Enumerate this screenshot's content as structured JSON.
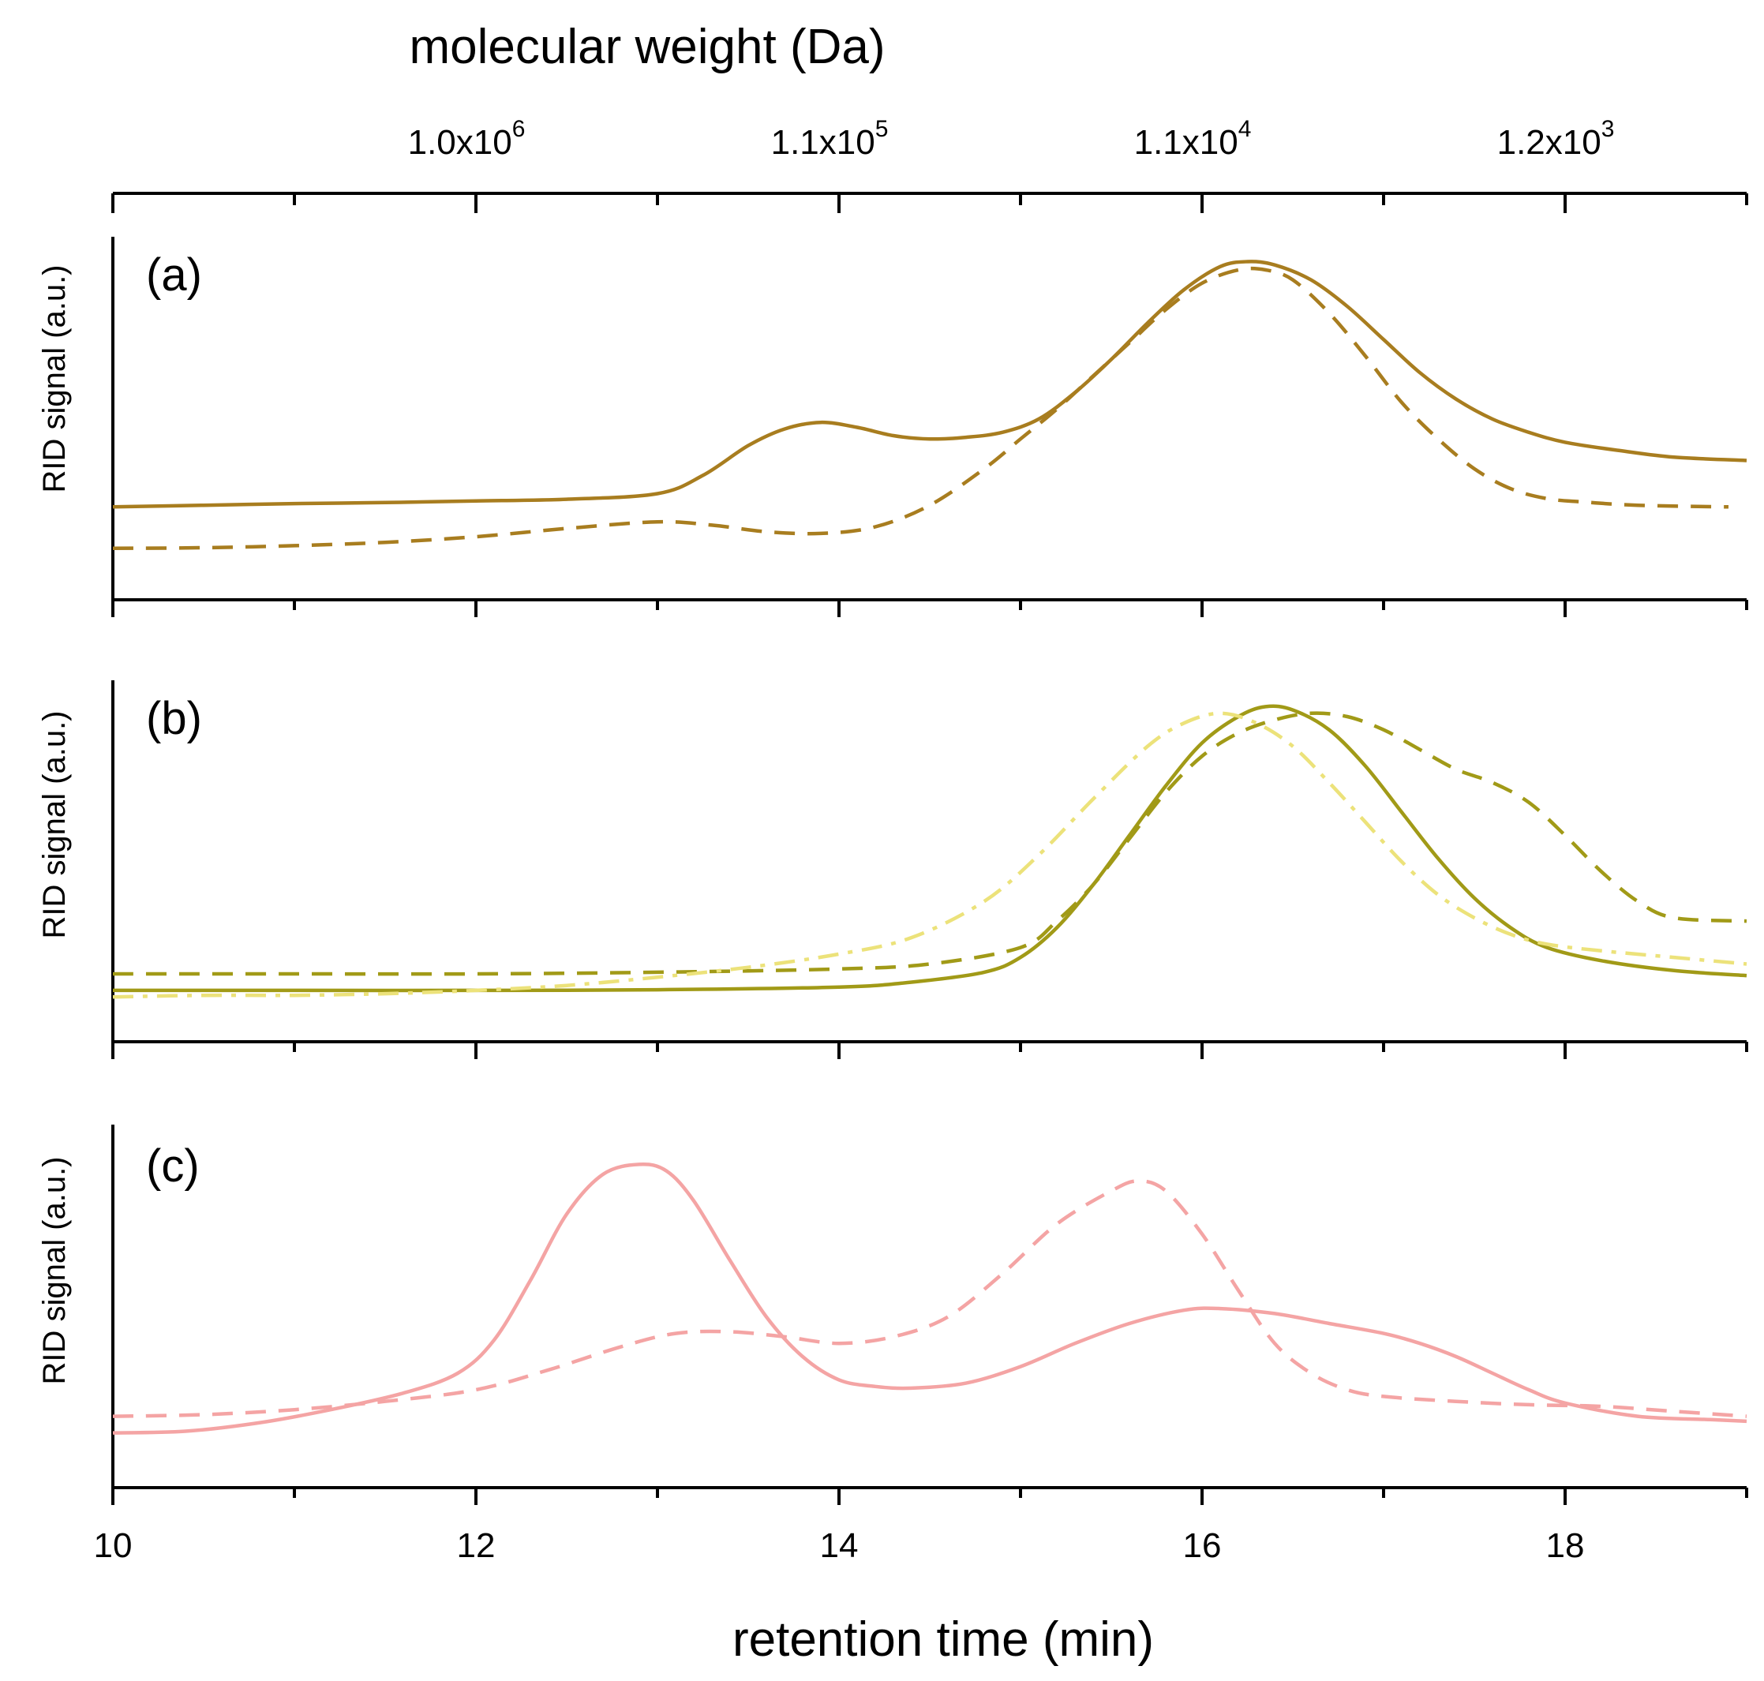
{
  "colors": {
    "a": "#a87d1f",
    "b_solid": "#a19a17",
    "b_dash": "#a19a17",
    "b_dashdot": "#ece27a",
    "c": "#f4a4a4"
  },
  "chart_data": {
    "type": "line",
    "xlabel": "retention time (min)",
    "top_axis_label": "molecular weight (Da)",
    "xlim": [
      10,
      19
    ],
    "x_major_ticks": [
      10,
      12,
      14,
      16,
      18
    ],
    "x_tick_labels": [
      "10",
      "12",
      "14",
      "16",
      "18"
    ],
    "x_minor_ticks": [
      11,
      13,
      15,
      17,
      19
    ],
    "top_ticks": [
      {
        "at": 12,
        "mantissa": "1.0x10",
        "exponent": "6"
      },
      {
        "at": 14,
        "mantissa": "1.1x10",
        "exponent": "5"
      },
      {
        "at": 16,
        "mantissa": "1.1x10",
        "exponent": "4"
      },
      {
        "at": 18,
        "mantissa": "1.2x10",
        "exponent": "3"
      }
    ],
    "panels": [
      {
        "label": "(a)",
        "ylabel": "RID signal (a.u.)",
        "ylim": [
          0,
          1
        ],
        "series": [
          {
            "name": "a-solid",
            "style": "solid",
            "color_key": "a",
            "x": [
              10,
              10.5,
              11,
              11.5,
              12,
              12.5,
              13,
              13.25,
              13.5,
              13.7,
              13.9,
              14.1,
              14.3,
              14.5,
              14.7,
              14.9,
              15.1,
              15.3,
              15.5,
              15.7,
              15.9,
              16.1,
              16.25,
              16.4,
              16.6,
              16.8,
              17.0,
              17.2,
              17.4,
              17.6,
              17.8,
              18.0,
              18.3,
              18.6,
              19.0
            ],
            "y": [
              0.185,
              0.19,
              0.195,
              0.198,
              0.203,
              0.208,
              0.225,
              0.28,
              0.37,
              0.42,
              0.44,
              0.425,
              0.4,
              0.39,
              0.395,
              0.41,
              0.45,
              0.53,
              0.63,
              0.74,
              0.84,
              0.91,
              0.925,
              0.915,
              0.87,
              0.79,
              0.69,
              0.59,
              0.51,
              0.45,
              0.41,
              0.38,
              0.355,
              0.335,
              0.325
            ]
          },
          {
            "name": "a-dashed",
            "style": "dashed",
            "color_key": "a",
            "x": [
              10,
              10.5,
              11,
              11.5,
              12,
              12.5,
              13,
              13.3,
              13.6,
              13.9,
              14.2,
              14.5,
              14.8,
              15.0,
              15.2,
              15.4,
              15.6,
              15.8,
              16.0,
              16.2,
              16.35,
              16.5,
              16.7,
              16.9,
              17.1,
              17.3,
              17.5,
              17.7,
              17.9,
              18.1,
              18.4,
              18.9
            ],
            "y": [
              0.06,
              0.062,
              0.068,
              0.078,
              0.095,
              0.12,
              0.14,
              0.13,
              0.11,
              0.105,
              0.125,
              0.19,
              0.3,
              0.39,
              0.48,
              0.58,
              0.68,
              0.78,
              0.86,
              0.9,
              0.9,
              0.87,
              0.77,
              0.64,
              0.5,
              0.39,
              0.3,
              0.24,
              0.21,
              0.2,
              0.19,
              0.185
            ]
          }
        ]
      },
      {
        "label": "(b)",
        "ylabel": "RID signal (a.u.)",
        "ylim": [
          0,
          1
        ],
        "series": [
          {
            "name": "b-solid",
            "style": "solid",
            "color_key": "b_solid",
            "x": [
              10,
              11,
              12,
              13,
              14,
              14.4,
              14.8,
              15.0,
              15.2,
              15.4,
              15.6,
              15.8,
              16.0,
              16.2,
              16.35,
              16.5,
              16.7,
              16.9,
              17.1,
              17.3,
              17.5,
              17.7,
              17.9,
              18.2,
              18.6,
              19.0
            ],
            "y": [
              0.06,
              0.06,
              0.06,
              0.062,
              0.07,
              0.085,
              0.115,
              0.16,
              0.25,
              0.38,
              0.53,
              0.68,
              0.81,
              0.89,
              0.92,
              0.91,
              0.85,
              0.74,
              0.6,
              0.46,
              0.34,
              0.25,
              0.19,
              0.15,
              0.12,
              0.105
            ]
          },
          {
            "name": "b-dashed",
            "style": "dashed",
            "color_key": "b_dash",
            "x": [
              10,
              11,
              12,
              13,
              14,
              14.5,
              15.0,
              15.2,
              15.4,
              15.6,
              15.8,
              16.0,
              16.2,
              16.4,
              16.6,
              16.8,
              17.0,
              17.2,
              17.4,
              17.6,
              17.8,
              18.0,
              18.2,
              18.4,
              18.6,
              19.0
            ],
            "y": [
              0.11,
              0.11,
              0.11,
              0.115,
              0.125,
              0.14,
              0.19,
              0.27,
              0.38,
              0.52,
              0.66,
              0.77,
              0.84,
              0.88,
              0.9,
              0.89,
              0.85,
              0.79,
              0.73,
              0.69,
              0.63,
              0.53,
              0.42,
              0.33,
              0.28,
              0.27
            ]
          },
          {
            "name": "b-dashdot",
            "style": "dashdot",
            "color_key": "b_dashdot",
            "x": [
              10,
              10.5,
              11,
              11.5,
              12,
              12.5,
              13,
              13.5,
              14,
              14.4,
              14.8,
              15.1,
              15.4,
              15.7,
              15.9,
              16.1,
              16.3,
              16.5,
              16.7,
              16.9,
              17.1,
              17.3,
              17.5,
              17.7,
              17.9,
              18.2,
              18.6,
              19.0
            ],
            "y": [
              0.04,
              0.045,
              0.045,
              0.05,
              0.06,
              0.075,
              0.1,
              0.13,
              0.17,
              0.22,
              0.33,
              0.47,
              0.64,
              0.8,
              0.87,
              0.9,
              0.87,
              0.8,
              0.69,
              0.57,
              0.45,
              0.35,
              0.28,
              0.23,
              0.2,
              0.18,
              0.16,
              0.14
            ]
          }
        ]
      },
      {
        "label": "(c)",
        "ylabel": "RID signal (a.u.)",
        "ylim": [
          0,
          1
        ],
        "series": [
          {
            "name": "c-solid",
            "style": "solid",
            "color_key": "c",
            "x": [
              10,
              10.4,
              10.8,
              11.2,
              11.6,
              11.9,
              12.1,
              12.3,
              12.5,
              12.7,
              12.9,
              13.05,
              13.2,
              13.4,
              13.6,
              13.8,
              14.0,
              14.2,
              14.4,
              14.7,
              15.0,
              15.3,
              15.6,
              15.9,
              16.1,
              16.4,
              16.7,
              17.0,
              17.2,
              17.4,
              17.6,
              17.8,
              18.0,
              18.4,
              18.8,
              19.0
            ],
            "y": [
              0.07,
              0.075,
              0.1,
              0.14,
              0.19,
              0.25,
              0.35,
              0.53,
              0.73,
              0.85,
              0.88,
              0.86,
              0.77,
              0.59,
              0.42,
              0.3,
              0.23,
              0.21,
              0.205,
              0.22,
              0.27,
              0.34,
              0.4,
              0.44,
              0.445,
              0.43,
              0.4,
              0.37,
              0.34,
              0.3,
              0.25,
              0.2,
              0.16,
              0.12,
              0.11,
              0.105
            ]
          },
          {
            "name": "c-dashed",
            "style": "dashed",
            "color_key": "c",
            "x": [
              10,
              10.5,
              11,
              11.5,
              12,
              12.4,
              12.8,
              13.1,
              13.4,
              13.7,
              14.0,
              14.3,
              14.6,
              14.9,
              15.2,
              15.5,
              15.65,
              15.8,
              16.0,
              16.2,
              16.4,
              16.6,
              16.8,
              17.0,
              17.4,
              17.8,
              18.2,
              18.6,
              19.0
            ],
            "y": [
              0.12,
              0.125,
              0.14,
              0.165,
              0.2,
              0.26,
              0.33,
              0.37,
              0.375,
              0.36,
              0.34,
              0.36,
              0.42,
              0.55,
              0.7,
              0.8,
              0.83,
              0.8,
              0.67,
              0.5,
              0.34,
              0.25,
              0.2,
              0.18,
              0.165,
              0.155,
              0.15,
              0.135,
              0.12
            ]
          }
        ]
      }
    ]
  }
}
